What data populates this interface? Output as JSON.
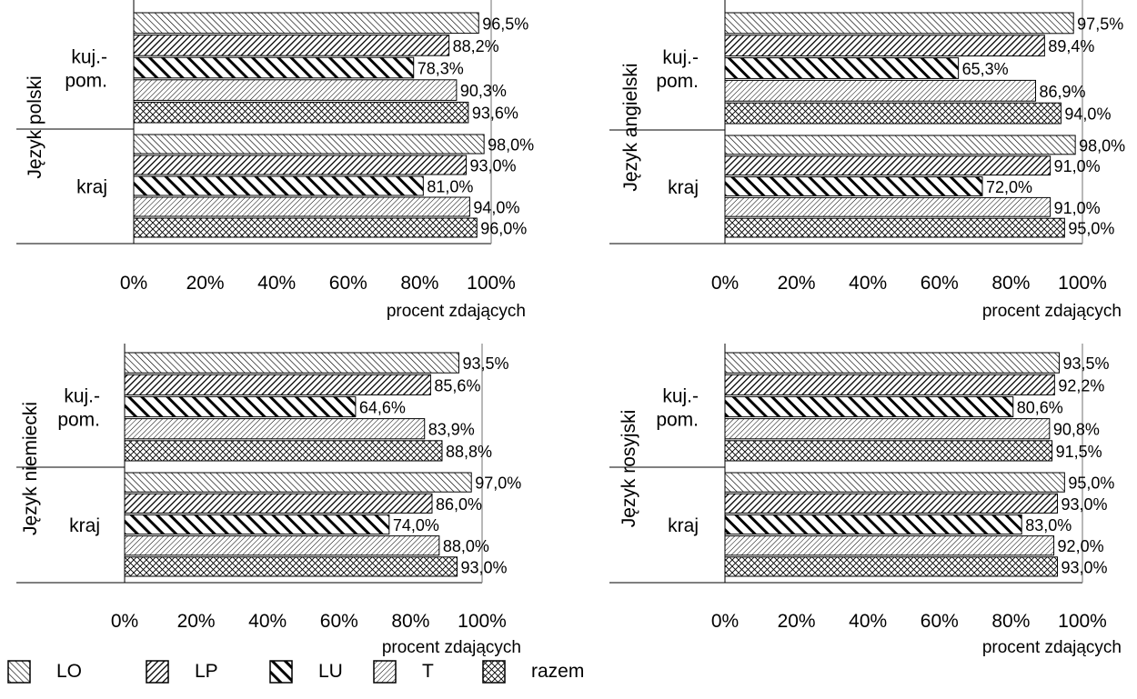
{
  "chart_data": [
    {
      "type": "bar",
      "orientation": "horizontal",
      "ylabel": "Język polski",
      "xlabel": "procent zdających",
      "groups": [
        "kuj.-\npom.",
        "kraj"
      ],
      "xlim": [
        0,
        100
      ],
      "x_ticks": [
        "0%",
        "20%",
        "40%",
        "60%",
        "80%",
        "100%"
      ],
      "series": [
        {
          "name": "LO",
          "values": [
            96.5,
            98.0
          ],
          "labels": [
            "96,5%",
            "98,0%"
          ]
        },
        {
          "name": "LP",
          "values": [
            88.2,
            93.0
          ],
          "labels": [
            "88,2%",
            "93,0%"
          ]
        },
        {
          "name": "LU",
          "values": [
            78.3,
            81.0
          ],
          "labels": [
            "78,3%",
            "81,0%"
          ]
        },
        {
          "name": "T",
          "values": [
            90.3,
            94.0
          ],
          "labels": [
            "90,3%",
            "94,0%"
          ]
        },
        {
          "name": "razem",
          "values": [
            93.6,
            96.0
          ],
          "labels": [
            "93,6%",
            "96,0%"
          ]
        }
      ],
      "grid": false
    },
    {
      "type": "bar",
      "orientation": "horizontal",
      "ylabel": "Język angielski",
      "xlabel": "procent zdających",
      "groups": [
        "kuj.-\npom.",
        "kraj"
      ],
      "xlim": [
        0,
        100
      ],
      "x_ticks": [
        "0%",
        "20%",
        "40%",
        "60%",
        "80%",
        "100%"
      ],
      "series": [
        {
          "name": "LO",
          "values": [
            97.5,
            98.0
          ],
          "labels": [
            "97,5%",
            "98,0%"
          ]
        },
        {
          "name": "LP",
          "values": [
            89.4,
            91.0
          ],
          "labels": [
            "89,4%",
            "91,0%"
          ]
        },
        {
          "name": "LU",
          "values": [
            65.3,
            72.0
          ],
          "labels": [
            "65,3%",
            "72,0%"
          ]
        },
        {
          "name": "T",
          "values": [
            86.9,
            91.0
          ],
          "labels": [
            "86,9%",
            "91,0%"
          ]
        },
        {
          "name": "razem",
          "values": [
            94.0,
            95.0
          ],
          "labels": [
            "94,0%",
            "95,0%"
          ]
        }
      ],
      "grid": false
    },
    {
      "type": "bar",
      "orientation": "horizontal",
      "ylabel": "Język niemiecki",
      "xlabel": "procent zdających",
      "groups": [
        "kuj.-\npom.",
        "kraj"
      ],
      "xlim": [
        0,
        100
      ],
      "x_ticks": [
        "0%",
        "20%",
        "40%",
        "60%",
        "80%",
        "100%"
      ],
      "series": [
        {
          "name": "LO",
          "values": [
            93.5,
            97.0
          ],
          "labels": [
            "93,5%",
            "97,0%"
          ]
        },
        {
          "name": "LP",
          "values": [
            85.6,
            86.0
          ],
          "labels": [
            "85,6%",
            "86,0%"
          ]
        },
        {
          "name": "LU",
          "values": [
            64.6,
            74.0
          ],
          "labels": [
            "64,6%",
            "74,0%"
          ]
        },
        {
          "name": "T",
          "values": [
            83.9,
            88.0
          ],
          "labels": [
            "83,9%",
            "88,0%"
          ]
        },
        {
          "name": "razem",
          "values": [
            88.8,
            93.0
          ],
          "labels": [
            "88,8%",
            "93,0%"
          ]
        }
      ],
      "grid": false
    },
    {
      "type": "bar",
      "orientation": "horizontal",
      "ylabel": "Język rosyjski",
      "xlabel": "procent zdających",
      "groups": [
        "kuj.-\npom.",
        "kraj"
      ],
      "xlim": [
        0,
        100
      ],
      "x_ticks": [
        "0%",
        "20%",
        "40%",
        "60%",
        "80%",
        "100%"
      ],
      "series": [
        {
          "name": "LO",
          "values": [
            93.5,
            95.0
          ],
          "labels": [
            "93,5%",
            "95,0%"
          ]
        },
        {
          "name": "LP",
          "values": [
            92.2,
            93.0
          ],
          "labels": [
            "92,2%",
            "93,0%"
          ]
        },
        {
          "name": "LU",
          "values": [
            80.6,
            83.0
          ],
          "labels": [
            "80,6%",
            "83,0%"
          ]
        },
        {
          "name": "T",
          "values": [
            90.8,
            92.0
          ],
          "labels": [
            "90,8%",
            "92,0%"
          ]
        },
        {
          "name": "razem",
          "values": [
            91.5,
            93.0
          ],
          "labels": [
            "91,5%",
            "93,0%"
          ]
        }
      ],
      "grid": false
    }
  ],
  "legend": {
    "placement": "bottom",
    "items": [
      {
        "label": "LO",
        "pattern": "lo-hatch"
      },
      {
        "label": "LP",
        "pattern": "lp-hatch"
      },
      {
        "label": "LU",
        "pattern": "lu-hatch"
      },
      {
        "label": "T",
        "pattern": "t-hatch"
      },
      {
        "label": "razem",
        "pattern": "razem-crosshatch"
      }
    ]
  },
  "colors": {
    "bar_outline": "#000000",
    "hatch": "#000000",
    "background": "#ffffff"
  }
}
